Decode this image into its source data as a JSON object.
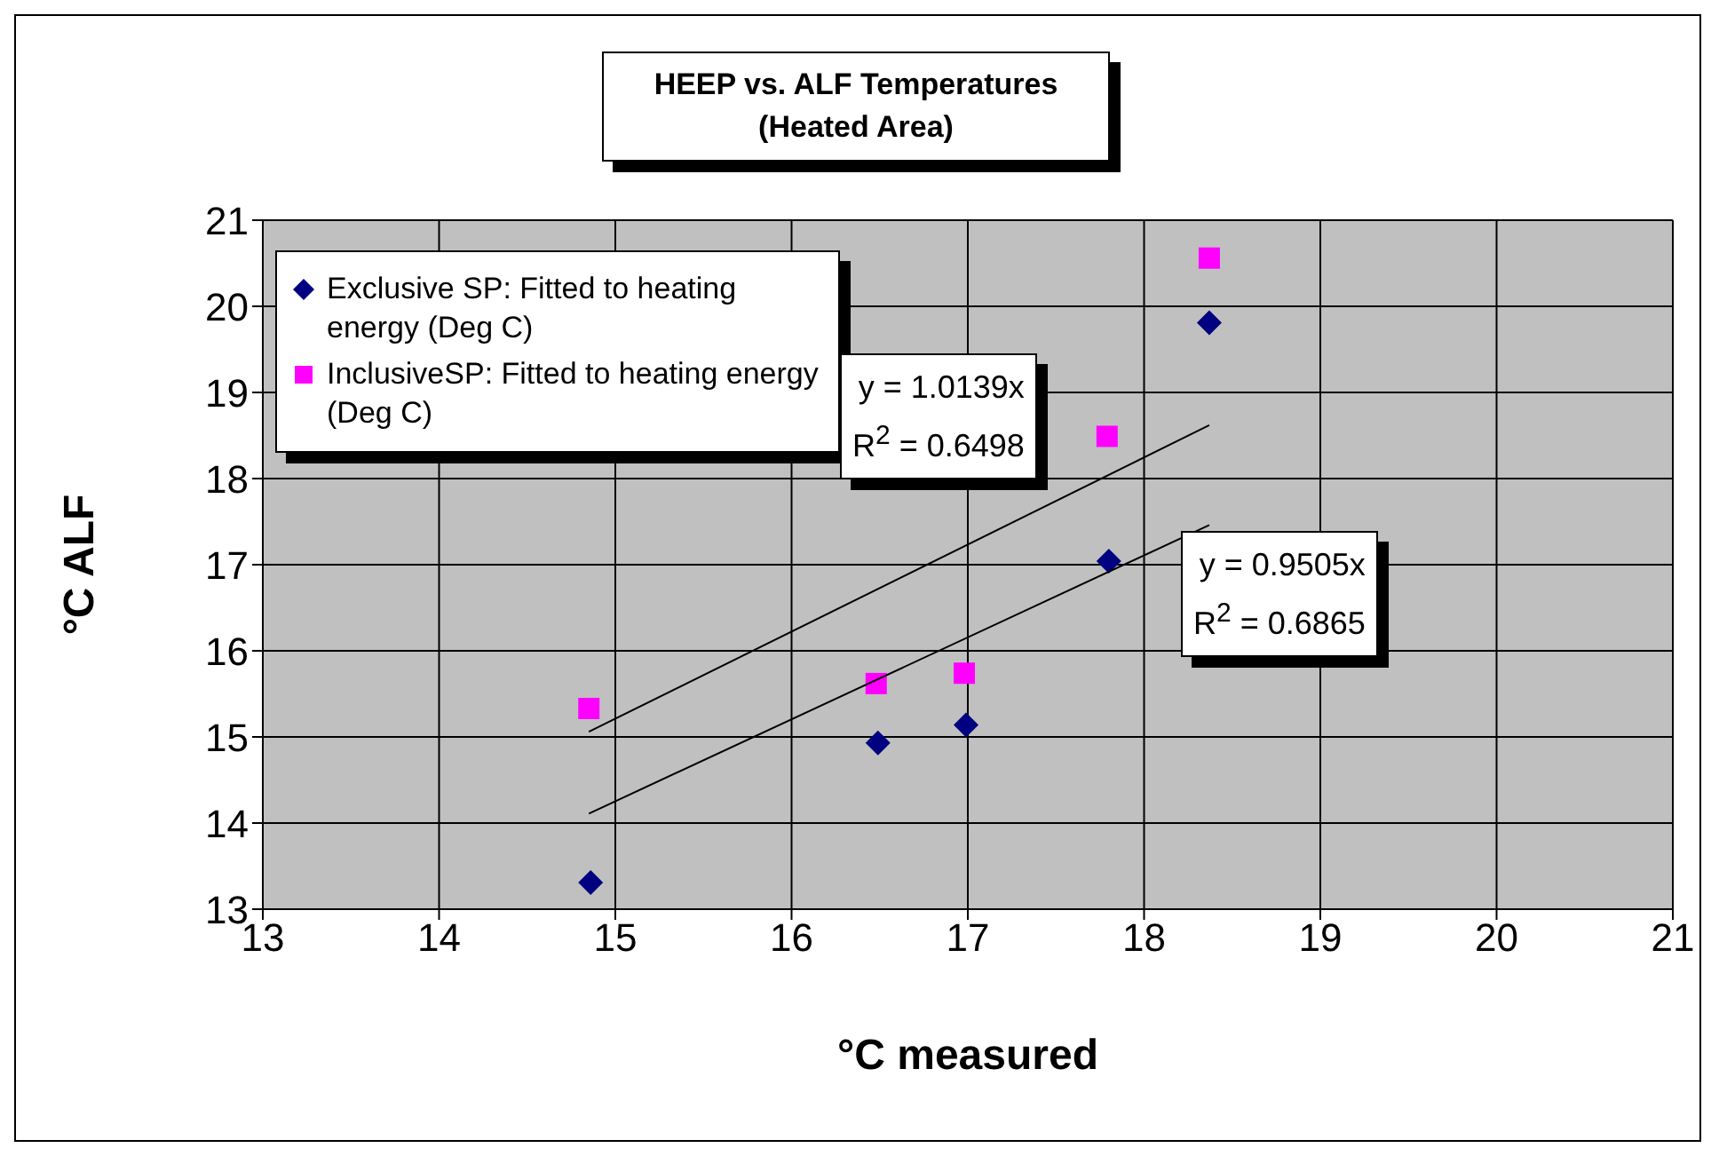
{
  "chart_data": {
    "type": "scatter",
    "title": "HEEP vs. ALF Temperatures",
    "subtitle": "(Heated Area)",
    "xlabel": "°C measured",
    "ylabel": "°C ALF",
    "xlim": [
      13,
      21
    ],
    "xticks": [
      13,
      14,
      15,
      16,
      17,
      18,
      19,
      20,
      21
    ],
    "ylim": [
      13,
      21
    ],
    "yticks": [
      13,
      14,
      15,
      16,
      17,
      18,
      19,
      20,
      21
    ],
    "grid": true,
    "legend": "top left",
    "series": [
      {
        "name": "Exclusive SP: Fitted to heating energy (Deg C)",
        "color": "#000080",
        "marker": "diamond",
        "x": [
          14.86,
          16.49,
          16.99,
          17.8,
          18.37
        ],
        "values": [
          13.31,
          14.93,
          15.14,
          17.04,
          19.81
        ]
      },
      {
        "name": "InclusiveSP: Fitted to heating energy (Deg C)",
        "color": "#ff00ff",
        "marker": "square",
        "x": [
          14.85,
          16.48,
          16.98,
          17.79,
          18.37
        ],
        "values": [
          15.33,
          15.62,
          15.74,
          18.49,
          20.56
        ]
      },
      {
        "type": "line",
        "color": "#000000",
        "x": [
          14.85,
          18.37
        ],
        "values": [
          15.06,
          18.62
        ]
      },
      {
        "type": "line",
        "color": "#000000",
        "x": [
          14.85,
          18.37
        ],
        "values": [
          14.11,
          17.46
        ]
      }
    ],
    "annotations": [
      "y = 1.0139x\nR$^{2}$ = 0.6498",
      "y = 0.9505x\nR$^{2}$ = 0.6865"
    ]
  }
}
